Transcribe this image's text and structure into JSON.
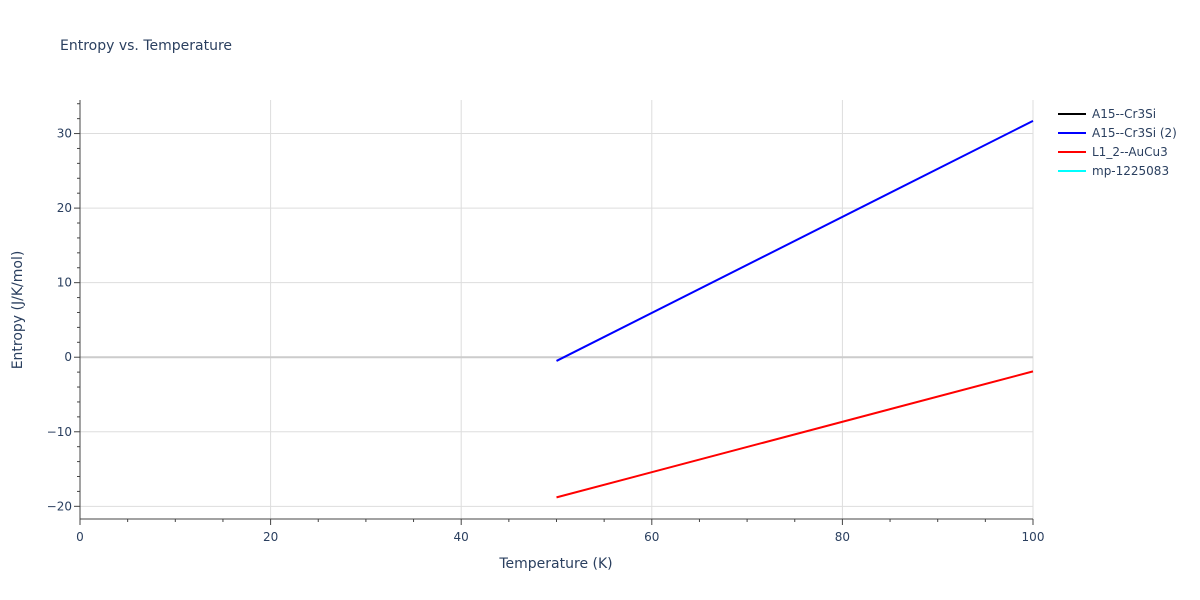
{
  "chart_data": {
    "type": "line",
    "title": "Entropy vs. Temperature",
    "xlabel": "Temperature (K)",
    "ylabel": "Entropy (J/K/mol)",
    "xlim": [
      0,
      100
    ],
    "ylim": [
      -21.7,
      34.5
    ],
    "x_ticks": [
      0,
      20,
      40,
      60,
      80,
      100
    ],
    "y_ticks": [
      -20,
      -10,
      0,
      10,
      20,
      30
    ],
    "y_tick_labels": [
      "−20",
      "−10",
      "0",
      "10",
      "20",
      "30"
    ],
    "grid": true,
    "legend_position": "top-right",
    "series": [
      {
        "name": "A15--Cr3Si",
        "color": "#000000",
        "x": [],
        "y": []
      },
      {
        "name": "A15--Cr3Si (2)",
        "color": "#0000ff",
        "x": [
          50,
          100
        ],
        "y": [
          -0.5,
          31.7
        ]
      },
      {
        "name": "L1_2--AuCu3",
        "color": "#ff0000",
        "x": [
          50,
          100
        ],
        "y": [
          -18.8,
          -1.9
        ]
      },
      {
        "name": "mp-1225083",
        "color": "#00ffff",
        "x": [],
        "y": []
      }
    ]
  }
}
